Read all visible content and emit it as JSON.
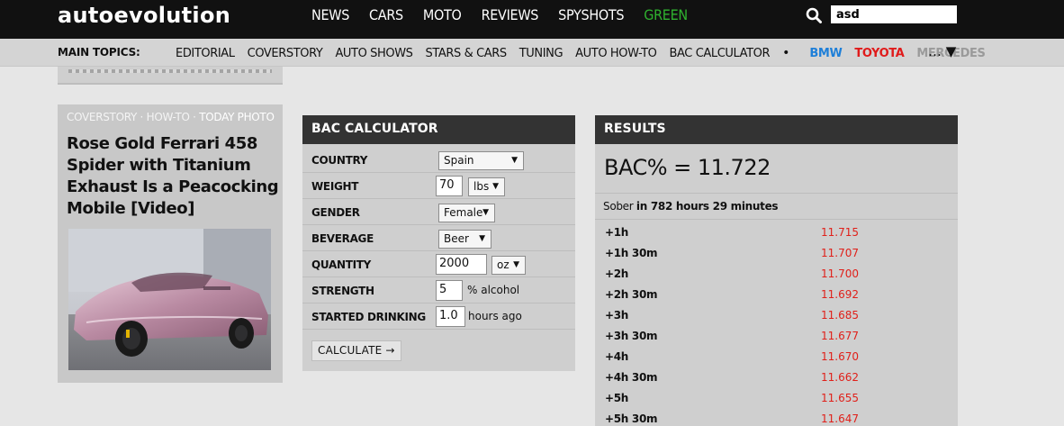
{
  "header": {
    "logo": "autoevolution",
    "nav": [
      "NEWS",
      "CARS",
      "MOTO",
      "REVIEWS",
      "SPYSHOTS",
      "GREEN"
    ],
    "search_value": "asd"
  },
  "subnav": {
    "label": "MAIN TOPICS:",
    "items": [
      "EDITORIAL",
      "COVERSTORY",
      "AUTO SHOWS",
      "STARS & CARS",
      "TUNING",
      "AUTO HOW-TO",
      "BAC CALCULATOR"
    ],
    "dot": "•",
    "brands": [
      "BMW",
      "TOYOTA",
      "MERCEDES"
    ],
    "more": "… ▼"
  },
  "card": {
    "crumb": [
      "COVERSTORY",
      "HOW-TO",
      "TODAY PHOTO"
    ],
    "crumb_sep": " · ",
    "title": "Rose Gold Ferrari 458 Spider with Titanium Exhaust Is a Peacocking Mobile [Video]"
  },
  "calculator": {
    "title": "BAC CALCULATOR",
    "labels": {
      "country": "COUNTRY",
      "weight": "WEIGHT",
      "gender": "GENDER",
      "beverage": "BEVERAGE",
      "quantity": "QUANTITY",
      "strength": "STRENGTH",
      "started": "STARTED DRINKING"
    },
    "values": {
      "country": "Spain",
      "weight": "70",
      "weight_unit": "lbs",
      "gender": "Female",
      "beverage": "Beer",
      "quantity": "2000",
      "quantity_unit": "oz",
      "strength": "5",
      "strength_suffix": "% alcohol",
      "started": "1.0",
      "started_suffix": "hours ago"
    },
    "button": "CALCULATE →"
  },
  "results": {
    "title": "RESULTS",
    "bac": "BAC% = 11.722",
    "sober_prefix": "Sober",
    "sober_time": "in 782 hours 29 minutes",
    "rows": [
      {
        "t": "+1h",
        "v": "11.715"
      },
      {
        "t": "+1h 30m",
        "v": "11.707"
      },
      {
        "t": "+2h",
        "v": "11.700"
      },
      {
        "t": "+2h 30m",
        "v": "11.692"
      },
      {
        "t": "+3h",
        "v": "11.685"
      },
      {
        "t": "+3h 30m",
        "v": "11.677"
      },
      {
        "t": "+4h",
        "v": "11.670"
      },
      {
        "t": "+4h 30m",
        "v": "11.662"
      },
      {
        "t": "+5h",
        "v": "11.655"
      },
      {
        "t": "+5h 30m",
        "v": "11.647"
      }
    ]
  }
}
